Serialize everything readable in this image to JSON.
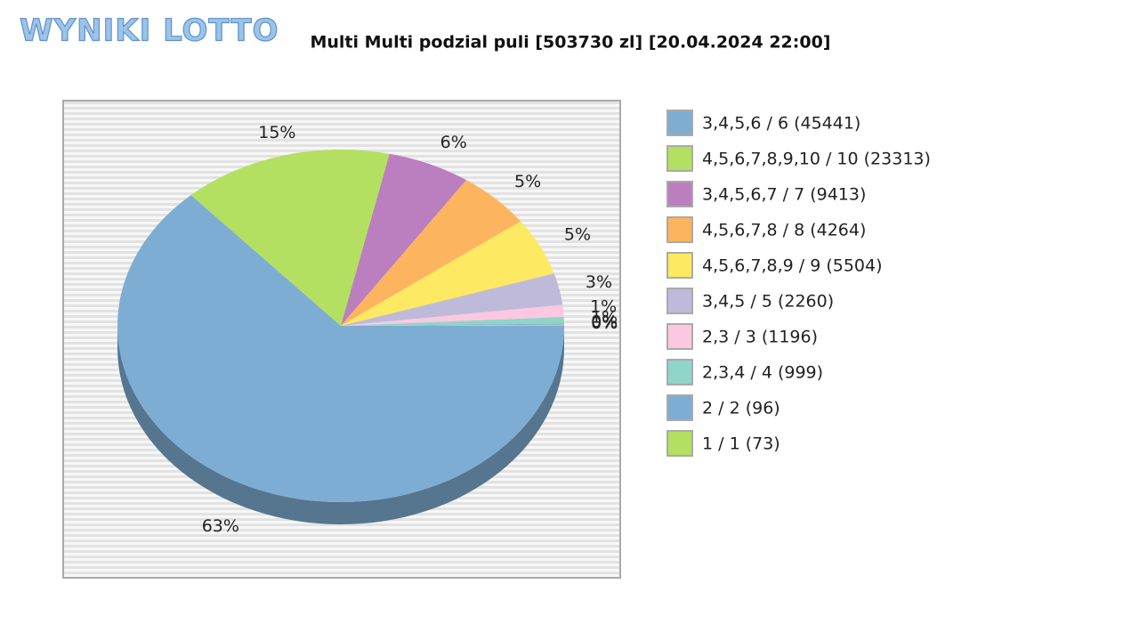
{
  "logo": "WYNIKI LOTTO",
  "chart_data": {
    "type": "pie",
    "title": "Multi Multi podzial puli [503730 zl] [20.04.2024 22:00]",
    "categories": [
      "3,4,5,6 / 6 (45441)",
      "4,5,6,7,8,9,10 / 10 (23313)",
      "3,4,5,6,7 / 7 (9413)",
      "4,5,6,7,8 / 8 (4264)",
      "4,5,6,7,8,9 / 9 (5504)",
      "3,4,5 / 5 (2260)",
      "2,3 / 3 (1196)",
      "2,3,4 / 4 (999)",
      "2 / 2 (96)",
      "1 / 1 (73)"
    ],
    "values": [
      63.3,
      15.2,
      6.0,
      5.4,
      5.3,
      2.9,
      1.1,
      0.6,
      0.1,
      0.1
    ],
    "value_labels": [
      "63%",
      "15%",
      "6%",
      "5%",
      "5%",
      "3%",
      "1%",
      "1%",
      "0%",
      "0%"
    ],
    "colors": [
      "#7eadd3",
      "#b3e060",
      "#bb7fbf",
      "#fdb45e",
      "#fde962",
      "#bfbada",
      "#fbc8e0",
      "#8fd5c8",
      "#7eadd3",
      "#b3e060"
    ],
    "legend": "right"
  }
}
